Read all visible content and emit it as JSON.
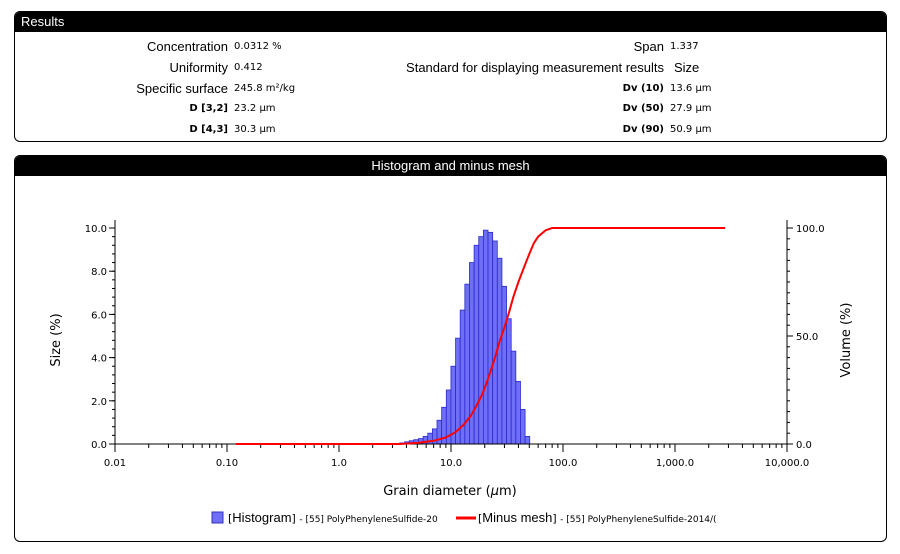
{
  "results": {
    "title": "Results",
    "left": [
      {
        "label": "Concentration",
        "value": "0.0312 %"
      },
      {
        "label": "Uniformity",
        "value": "0.412"
      },
      {
        "label": "Specific surface",
        "value": "245.8 m²/kg"
      },
      {
        "label": "D [3,2]",
        "value": "23.2 μm"
      },
      {
        "label": "D [4,3]",
        "value": "30.3 μm"
      }
    ],
    "right": [
      {
        "label": "Span",
        "value": "1.337"
      },
      {
        "label": "Standard for displaying measurement results",
        "value": "Size"
      },
      {
        "label": "Dv (10)",
        "value": "13.6 μm"
      },
      {
        "label": "Dv (50)",
        "value": "27.9 μm"
      },
      {
        "label": "Dv (90)",
        "value": "50.9 μm"
      }
    ]
  },
  "chart_panel": {
    "title": "Histogram and minus mesh"
  },
  "chart_data": {
    "type": "bar",
    "xlabel_prefix": "Grain diameter (",
    "xlabel_unit": "μ",
    "xlabel_suffix": "m)",
    "ylabel": "Size (%)",
    "y2label": "Volume (%)",
    "xscale": "log",
    "xlim": [
      0.01,
      10000
    ],
    "ylim": [
      0,
      10
    ],
    "y2lim": [
      0,
      100
    ],
    "x_ticks": [
      0.01,
      0.1,
      1,
      10,
      100,
      1000,
      10000
    ],
    "x_tick_labels": [
      "0.01",
      "0.10",
      "1.0",
      "10.0",
      "100.0",
      "1,000.0",
      "10,000.0"
    ],
    "y_tick_labels": [
      "0.0",
      "2.0",
      "4.0",
      "6.0",
      "8.0",
      "10.0"
    ],
    "y2_tick_labels": [
      "0.0",
      "50.0",
      "100.0"
    ],
    "histogram": {
      "name": "Histogram",
      "legend_suffix": "- [55] PolyPhenyleneSulfide-20",
      "color": "#6f6ff5",
      "bin_start": 3.5,
      "bin_ratio": 1.1,
      "values": [
        0.05,
        0.1,
        0.15,
        0.2,
        0.25,
        0.35,
        0.5,
        0.7,
        1.1,
        1.7,
        2.5,
        3.6,
        4.9,
        6.2,
        7.4,
        8.4,
        9.2,
        9.6,
        9.9,
        9.8,
        9.4,
        8.6,
        7.3,
        5.8,
        4.3,
        2.9,
        1.6,
        0.35
      ]
    },
    "minus_mesh": {
      "name": "Minus mesh",
      "legend_suffix": "- [55] PolyPhenyleneSulfide-2014/(",
      "color": "#ff0000",
      "x": [
        0.12,
        3.5,
        5,
        7,
        9,
        11,
        13,
        15,
        17,
        19,
        21,
        23,
        25,
        27,
        30,
        33,
        36,
        40,
        45,
        50,
        55,
        60,
        70,
        80,
        100,
        2800
      ],
      "y": [
        0,
        0,
        0.5,
        1.5,
        3,
        5.5,
        9,
        13,
        18,
        23,
        29,
        35,
        41,
        47,
        54,
        61,
        68,
        75,
        82,
        88,
        93,
        96,
        99,
        100,
        100,
        100
      ]
    }
  }
}
